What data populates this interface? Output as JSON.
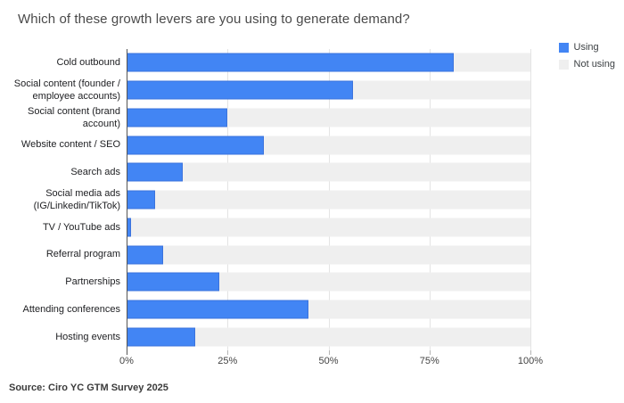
{
  "title": "Which of these growth levers are you using to generate demand?",
  "source": "Source: Ciro YC GTM Survey 2025",
  "colors": {
    "using": "#4285f4",
    "using_stroke": "#3b73dd",
    "not_using": "#efefef",
    "gridline": "#e4e4e4",
    "baseline": "#555555"
  },
  "chart_data": {
    "type": "bar",
    "orientation": "horizontal",
    "stacked_to_100_percent": true,
    "title": "Which of these growth levers are you using to generate demand?",
    "legend_position": "top-right",
    "grid": true,
    "categories": [
      "Cold outbound",
      "Social content (founder /\nemployee accounts)",
      "Social content (brand\naccount)",
      "Website content / SEO",
      "Search ads",
      "Social media ads\n(IG/Linkedin/TikTok)",
      "TV / YouTube ads",
      "Referral program",
      "Partnerships",
      "Attending conferences",
      "Hosting events"
    ],
    "series": [
      {
        "name": "Using",
        "color": "#4285f4",
        "values": [
          81,
          56,
          25,
          34,
          14,
          7,
          1,
          9,
          23,
          45,
          17
        ]
      },
      {
        "name": "Not using",
        "color": "#efefef",
        "values": [
          19,
          44,
          75,
          66,
          86,
          93,
          99,
          91,
          77,
          55,
          83
        ]
      }
    ],
    "x_axis": {
      "min": 0,
      "max": 100,
      "tick_values": [
        0,
        25,
        50,
        75,
        100
      ],
      "tick_labels": [
        "0%",
        "25%",
        "50%",
        "75%",
        "100%"
      ]
    }
  }
}
